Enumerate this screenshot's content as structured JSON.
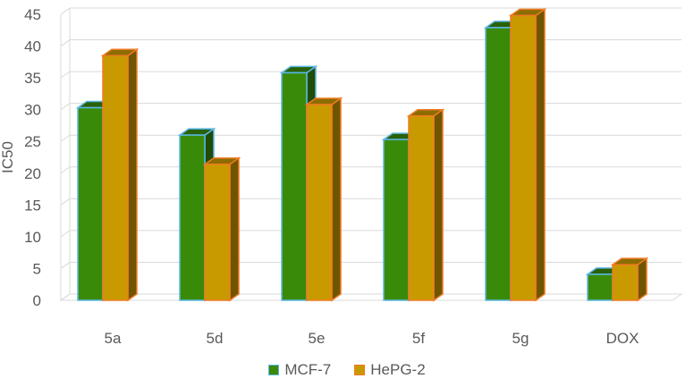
{
  "chart_data": {
    "type": "bar",
    "categories": [
      "5a",
      "5d",
      "5e",
      "5f",
      "5g",
      "DOX"
    ],
    "series": [
      {
        "name": "MCF-7",
        "values": [
          30.3,
          26.0,
          35.8,
          25.3,
          42.9,
          4.1
        ],
        "color": "#3A8A0A",
        "outline": "#5BB7E8"
      },
      {
        "name": "HePG-2",
        "values": [
          38.5,
          21.4,
          30.8,
          29.0,
          44.8,
          5.6
        ],
        "color": "#C99A00",
        "outline": "#F07A22"
      }
    ],
    "xlabel": "",
    "ylabel": "IC50",
    "ylim": [
      0,
      45
    ],
    "yticks": [
      0,
      5,
      10,
      15,
      20,
      25,
      30,
      35,
      40,
      45
    ],
    "grid": true,
    "legend_position": "bottom"
  }
}
